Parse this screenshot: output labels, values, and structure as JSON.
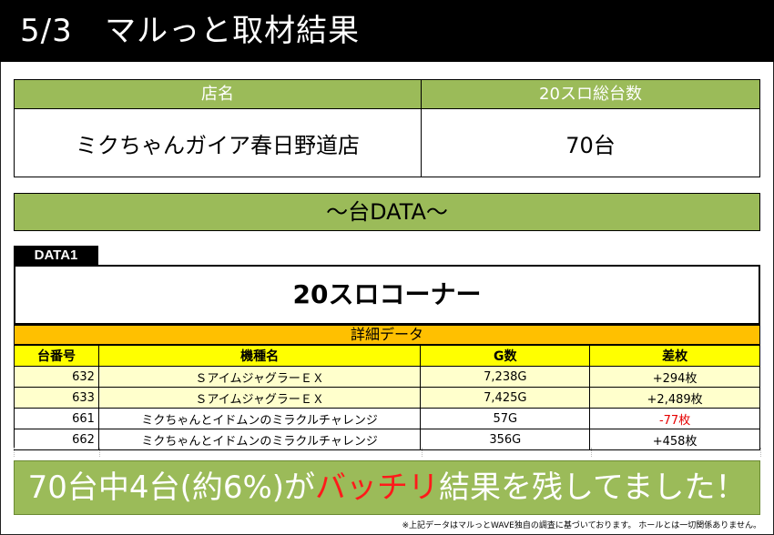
{
  "header": {
    "title": "5/3   マルっと取材結果"
  },
  "info": {
    "store_label": "店名",
    "count_label": "20スロ総台数",
    "store_value": "ミクちゃんガイア春日野道店",
    "count_value": "70台"
  },
  "section_title": "～台DATA～",
  "data_tab": "DATA1",
  "corner_title": "20スロコーナー",
  "detail_title": "詳細データ",
  "table": {
    "headers": [
      "台番号",
      "機種名",
      "G数",
      "差枚"
    ],
    "rows": [
      [
        "632",
        "ＳアイムジャグラーＥＸ",
        "7,238G",
        "+294枚"
      ],
      [
        "633",
        "ＳアイムジャグラーＥＸ",
        "7,425G",
        "+2,489枚"
      ],
      [
        "661",
        "ミクちゃんとイドムンのミラクルチャレンジ",
        "57G",
        "-77枚"
      ],
      [
        "662",
        "ミクちゃんとイドムンのミラクルチャレンジ",
        "356G",
        "+458枚"
      ]
    ]
  },
  "result": {
    "before": "70台中4台(約6%)が",
    "highlight": "バッチリ",
    "after": "結果を残してました！"
  },
  "footnote": "※上記データはマルっとWAVE独自の調査に基づいております。 ホールとは一切関係ありません。",
  "colors": {
    "header_bg": "#000000",
    "green": "#9bbb59",
    "orange": "#ffc000",
    "yellow": "#ffff00",
    "highlight_row": "#ffffcc",
    "red": "#ff1a1a"
  }
}
